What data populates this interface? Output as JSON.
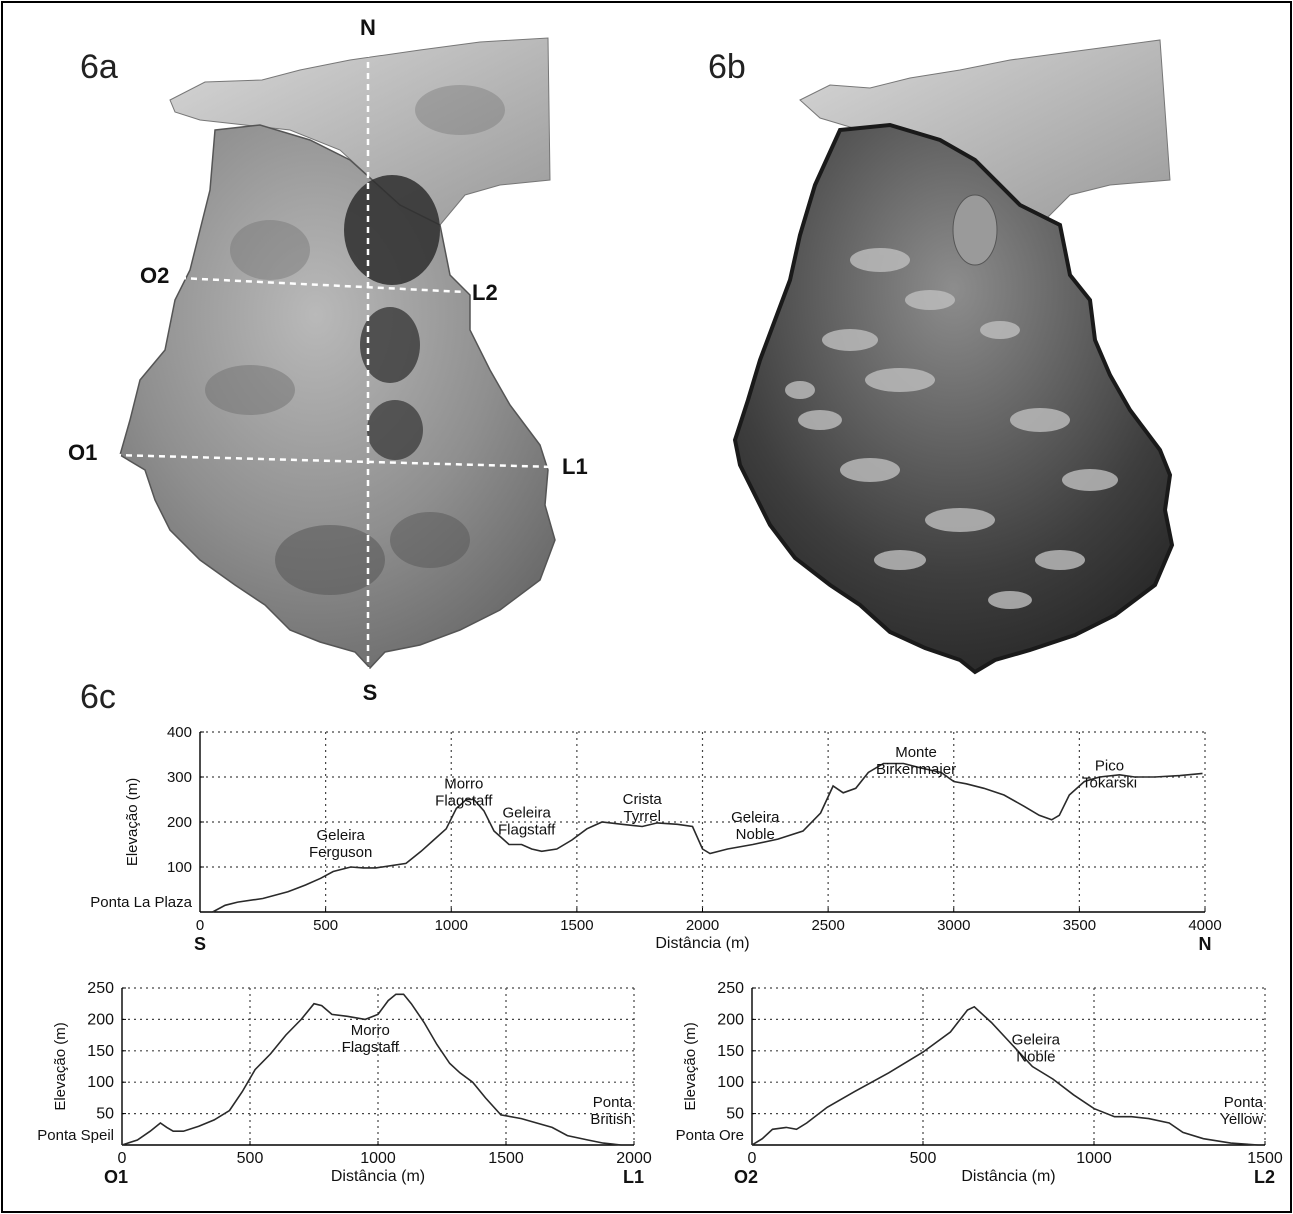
{
  "panels": {
    "a": {
      "label": "6a",
      "north": "N",
      "south": "S",
      "o1": "O1",
      "l1": "L1",
      "o2": "O2",
      "l2": "L2"
    },
    "b": {
      "label": "6b"
    },
    "c": {
      "label": "6c"
    }
  },
  "colors": {
    "ink": "#2a2a2a",
    "relief": "#8a8a8a",
    "relief_dark": "#3a3a3a",
    "photo": "#4a4a4a",
    "snow": "#c8c8c8",
    "grid": "#444444"
  },
  "chart_data": [
    {
      "type": "line",
      "xlabel": "Distância (m)",
      "ylabel": "Elevação (m)",
      "xlim": [
        0,
        4000
      ],
      "ylim": [
        0,
        400
      ],
      "xticks": [
        0,
        500,
        1000,
        1500,
        2000,
        2500,
        3000,
        3500,
        4000
      ],
      "yticks": [
        100,
        200,
        300,
        400
      ],
      "grid": true,
      "start_label": "S",
      "end_label": "N",
      "start_point": "Ponta La Plaza",
      "annotations": [
        {
          "text": [
            "Geleira",
            "Ferguson"
          ],
          "x": 560,
          "y": 160
        },
        {
          "text": [
            "Morro",
            "Flagstaff"
          ],
          "x": 1050,
          "y": 275
        },
        {
          "text": [
            "Geleira",
            "Flagstaff"
          ],
          "x": 1300,
          "y": 210
        },
        {
          "text": [
            "Crista",
            "Tyrrel"
          ],
          "x": 1760,
          "y": 240
        },
        {
          "text": [
            "Geleira",
            "Noble"
          ],
          "x": 2210,
          "y": 200
        },
        {
          "text": [
            "Monte",
            "Birkenmajer"
          ],
          "x": 2850,
          "y": 345
        },
        {
          "text": [
            "Pico",
            "Tokarski"
          ],
          "x": 3620,
          "y": 315
        }
      ],
      "series": [
        {
          "x": [
            50,
            100,
            150,
            250,
            350,
            420,
            480,
            530,
            600,
            650,
            700,
            820,
            880,
            930,
            980,
            1020,
            1060,
            1090,
            1130,
            1170,
            1230,
            1280,
            1320,
            1360,
            1420,
            1480,
            1540,
            1600,
            1680,
            1760,
            1820,
            1900,
            1960,
            2000,
            2030,
            2100,
            2200,
            2300,
            2400,
            2470,
            2520,
            2560,
            2610,
            2660,
            2720,
            2800,
            2870,
            2950,
            3000,
            3050,
            3120,
            3200,
            3280,
            3340,
            3390,
            3420,
            3460,
            3520,
            3580,
            3660,
            3720,
            3800,
            3900,
            3990
          ],
          "y": [
            0,
            15,
            22,
            30,
            45,
            60,
            75,
            90,
            100,
            98,
            98,
            108,
            135,
            160,
            185,
            230,
            250,
            250,
            225,
            180,
            150,
            150,
            140,
            135,
            140,
            160,
            185,
            200,
            195,
            190,
            198,
            195,
            190,
            140,
            130,
            140,
            150,
            162,
            180,
            220,
            280,
            265,
            275,
            310,
            330,
            330,
            320,
            310,
            290,
            285,
            275,
            260,
            235,
            215,
            205,
            215,
            260,
            290,
            300,
            305,
            300,
            300,
            303,
            308
          ]
        }
      ]
    },
    {
      "type": "line",
      "xlabel": "Distância (m)",
      "ylabel": "Elevação (m)",
      "xlim": [
        0,
        2000
      ],
      "ylim": [
        0,
        250
      ],
      "xticks": [
        0,
        500,
        1000,
        1500,
        2000
      ],
      "yticks": [
        50,
        100,
        150,
        200,
        250
      ],
      "grid": true,
      "start_label": "O1",
      "end_label": "L1",
      "start_point": "Ponta Speil",
      "end_point": [
        "Ponta",
        "British"
      ],
      "annotations": [
        {
          "text": [
            "Morro",
            "Flagstaff"
          ],
          "x": 970,
          "y": 175
        }
      ],
      "series": [
        {
          "x": [
            0,
            60,
            110,
            150,
            175,
            200,
            240,
            300,
            360,
            420,
            470,
            520,
            580,
            640,
            700,
            750,
            780,
            820,
            880,
            950,
            1000,
            1040,
            1070,
            1100,
            1130,
            1180,
            1230,
            1280,
            1320,
            1370,
            1420,
            1480,
            1560,
            1620,
            1680,
            1740,
            1820,
            1880,
            1950
          ],
          "y": [
            0,
            8,
            22,
            35,
            28,
            22,
            22,
            30,
            40,
            55,
            85,
            120,
            145,
            175,
            200,
            225,
            222,
            208,
            205,
            200,
            208,
            230,
            240,
            240,
            225,
            195,
            160,
            130,
            115,
            100,
            75,
            48,
            42,
            35,
            28,
            15,
            8,
            3,
            0
          ]
        }
      ]
    },
    {
      "type": "line",
      "xlabel": "Distância (m)",
      "ylabel": "Elevação (m)",
      "xlim": [
        0,
        1500
      ],
      "ylim": [
        0,
        250
      ],
      "xticks": [
        0,
        500,
        1000,
        1500
      ],
      "yticks": [
        50,
        100,
        150,
        200,
        250
      ],
      "grid": true,
      "start_label": "O2",
      "end_label": "L2",
      "start_point": "Ponta Ore",
      "end_point": [
        "Ponta",
        "Yellow"
      ],
      "annotations": [
        {
          "text": [
            "Geleira",
            "Noble"
          ],
          "x": 830,
          "y": 160
        }
      ],
      "series": [
        {
          "x": [
            0,
            30,
            60,
            100,
            130,
            160,
            220,
            300,
            400,
            500,
            580,
            630,
            650,
            700,
            760,
            820,
            880,
            940,
            1000,
            1060,
            1110,
            1160,
            1220,
            1260,
            1320,
            1400,
            1480
          ],
          "y": [
            0,
            10,
            25,
            28,
            25,
            35,
            60,
            85,
            115,
            148,
            180,
            215,
            220,
            195,
            160,
            125,
            105,
            80,
            58,
            45,
            45,
            42,
            35,
            20,
            10,
            3,
            0
          ]
        }
      ]
    }
  ]
}
